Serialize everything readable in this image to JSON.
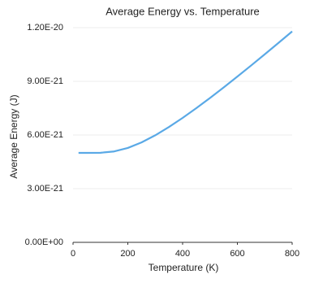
{
  "chart_data": {
    "type": "line",
    "title": "Average Energy vs. Temperature",
    "x_label": "Temperature (K)",
    "y_label": "Average Energy (J)",
    "x": [
      20,
      50,
      100,
      150,
      200,
      250,
      300,
      350,
      400,
      450,
      500,
      550,
      600,
      650,
      700,
      750,
      800
    ],
    "series": [
      {
        "name": "Average Energy",
        "color": "#5aa9e6",
        "values": [
          5e-21,
          5e-21,
          5.007e-21,
          5.081e-21,
          5.275e-21,
          5.584e-21,
          5.982e-21,
          6.445e-21,
          6.955e-21,
          7.5e-21,
          8.07e-21,
          8.66e-21,
          9.266e-21,
          9.884e-21,
          1.0512e-20,
          1.1148e-20,
          1.1789e-20
        ]
      }
    ],
    "xlim": [
      0,
      800
    ],
    "xticks": [
      0,
      200,
      400,
      600,
      800
    ],
    "ylim": [
      0,
      1.2e-20
    ],
    "yticks": [
      {
        "value": 0,
        "label": "0.00E+00"
      },
      {
        "value": 3e-21,
        "label": "3.00E-21"
      },
      {
        "value": 6e-21,
        "label": "6.00E-21"
      },
      {
        "value": 9e-21,
        "label": "9.00E-21"
      },
      {
        "value": 1.2e-20,
        "label": "1.20E-20"
      }
    ],
    "grid": true
  }
}
